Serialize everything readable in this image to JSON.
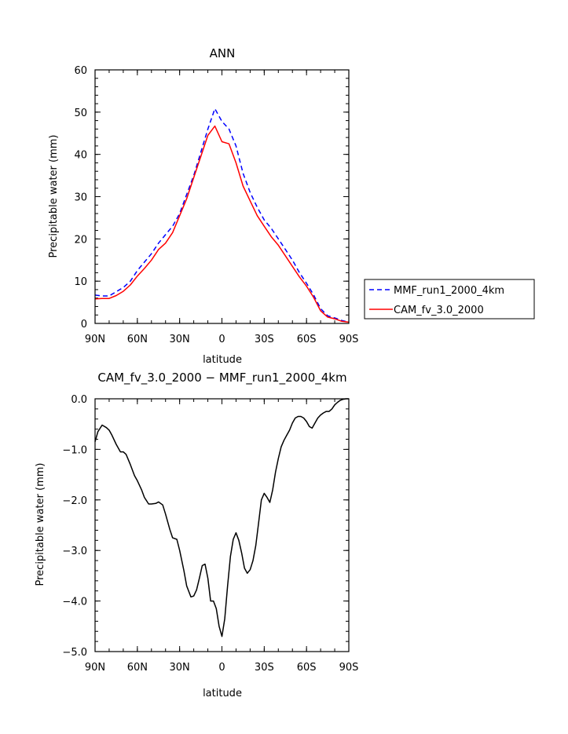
{
  "chart_data": [
    {
      "type": "line",
      "title": "ANN",
      "xlabel": "latitude",
      "ylabel": "Precipitable water (mm)",
      "xlim": [
        90,
        -90
      ],
      "ylim": [
        0,
        60
      ],
      "x_ticks": [
        {
          "value": 90,
          "label": "90N"
        },
        {
          "value": 60,
          "label": "60N"
        },
        {
          "value": 30,
          "label": "30N"
        },
        {
          "value": 0,
          "label": "0"
        },
        {
          "value": -30,
          "label": "30S"
        },
        {
          "value": -60,
          "label": "60S"
        },
        {
          "value": -90,
          "label": "90S"
        }
      ],
      "y_ticks": [
        {
          "value": 0,
          "label": "0"
        },
        {
          "value": 10,
          "label": "10"
        },
        {
          "value": 20,
          "label": "20"
        },
        {
          "value": 30,
          "label": "30"
        },
        {
          "value": 40,
          "label": "40"
        },
        {
          "value": 50,
          "label": "50"
        },
        {
          "value": 60,
          "label": "60"
        }
      ],
      "legend_position": "right",
      "series": [
        {
          "name": "MMF_run1_2000_4km",
          "color": "#0000ff",
          "dash": "dashed",
          "x": [
            90,
            85,
            80,
            75,
            70,
            65,
            60,
            55,
            50,
            45,
            40,
            35,
            30,
            25,
            20,
            15,
            10,
            5,
            0,
            -5,
            -10,
            -15,
            -20,
            -25,
            -30,
            -35,
            -40,
            -45,
            -50,
            -55,
            -60,
            -65,
            -70,
            -75,
            -80,
            -85,
            -90
          ],
          "y": [
            6.7,
            6.5,
            6.5,
            7.5,
            8.5,
            10.0,
            12.5,
            14.5,
            16.5,
            19.0,
            21.0,
            23.0,
            26.0,
            30.5,
            35.0,
            40.5,
            46.0,
            50.8,
            47.8,
            46.0,
            42.0,
            35.5,
            31.0,
            27.5,
            24.5,
            22.5,
            20.0,
            17.5,
            15.0,
            12.0,
            9.5,
            6.8,
            3.5,
            1.8,
            1.3,
            0.7,
            0.3
          ]
        },
        {
          "name": "CAM_fv_3.0_2000",
          "color": "#ff0000",
          "dash": "solid",
          "x": [
            90,
            85,
            80,
            75,
            70,
            65,
            60,
            55,
            50,
            45,
            40,
            35,
            30,
            25,
            20,
            15,
            10,
            5,
            0,
            -5,
            -10,
            -15,
            -20,
            -25,
            -30,
            -35,
            -40,
            -45,
            -50,
            -55,
            -60,
            -65,
            -70,
            -75,
            -80,
            -85,
            -90
          ],
          "y": [
            5.8,
            5.9,
            5.9,
            6.6,
            7.6,
            9.1,
            11.2,
            13.0,
            15.0,
            17.5,
            19.0,
            21.5,
            25.5,
            29.5,
            34.5,
            39.5,
            44.5,
            46.7,
            43.0,
            42.5,
            38.0,
            32.5,
            29.0,
            25.5,
            23.0,
            20.5,
            18.5,
            16.0,
            13.5,
            11.0,
            8.8,
            6.2,
            3.0,
            1.5,
            1.1,
            0.5,
            0.3
          ]
        }
      ]
    },
    {
      "type": "line",
      "title": "CAM_fv_3.0_2000 − MMF_run1_2000_4km",
      "xlabel": "latitude",
      "ylabel": "Precipitable water (mm)",
      "xlim": [
        90,
        -90
      ],
      "ylim": [
        -5.0,
        0.0
      ],
      "x_ticks": [
        {
          "value": 90,
          "label": "90N"
        },
        {
          "value": 60,
          "label": "60N"
        },
        {
          "value": 30,
          "label": "30N"
        },
        {
          "value": 0,
          "label": "0"
        },
        {
          "value": -30,
          "label": "30S"
        },
        {
          "value": -60,
          "label": "60S"
        },
        {
          "value": -90,
          "label": "90S"
        }
      ],
      "y_ticks": [
        {
          "value": 0.0,
          "label": "0.0"
        },
        {
          "value": -1.0,
          "label": "−1.0"
        },
        {
          "value": -2.0,
          "label": "−2.0"
        },
        {
          "value": -3.0,
          "label": "−3.0"
        },
        {
          "value": -4.0,
          "label": "−4.0"
        },
        {
          "value": -5.0,
          "label": "−5.0"
        }
      ],
      "series": [
        {
          "color": "#000000",
          "dash": "solid",
          "x": [
            90,
            88,
            85,
            82,
            80,
            78,
            75,
            72,
            70,
            68,
            65,
            62,
            60,
            57,
            55,
            52,
            50,
            47,
            45,
            42,
            40,
            37,
            35,
            32,
            30,
            27,
            25,
            22,
            20,
            18,
            16,
            14,
            12,
            10,
            8,
            6,
            4,
            2,
            0,
            -2,
            -4,
            -6,
            -8,
            -10,
            -12,
            -14,
            -16,
            -18,
            -20,
            -22,
            -24,
            -26,
            -28,
            -30,
            -32,
            -34,
            -36,
            -38,
            -40,
            -42,
            -44,
            -46,
            -48,
            -50,
            -52,
            -54,
            -56,
            -58,
            -60,
            -62,
            -64,
            -66,
            -68,
            -70,
            -72,
            -74,
            -76,
            -78,
            -80,
            -82,
            -84,
            -86,
            -88,
            -90
          ],
          "y": [
            -0.85,
            -0.65,
            -0.52,
            -0.57,
            -0.62,
            -0.72,
            -0.9,
            -1.05,
            -1.05,
            -1.1,
            -1.3,
            -1.52,
            -1.62,
            -1.8,
            -1.95,
            -2.08,
            -2.08,
            -2.07,
            -2.04,
            -2.1,
            -2.28,
            -2.58,
            -2.75,
            -2.78,
            -3.0,
            -3.4,
            -3.7,
            -3.92,
            -3.9,
            -3.78,
            -3.55,
            -3.3,
            -3.27,
            -3.55,
            -4.0,
            -4.0,
            -4.15,
            -4.5,
            -4.7,
            -4.35,
            -3.7,
            -3.12,
            -2.78,
            -2.65,
            -2.8,
            -3.05,
            -3.35,
            -3.45,
            -3.38,
            -3.2,
            -2.9,
            -2.45,
            -2.0,
            -1.87,
            -1.95,
            -2.05,
            -1.8,
            -1.45,
            -1.18,
            -0.95,
            -0.82,
            -0.72,
            -0.62,
            -0.48,
            -0.38,
            -0.35,
            -0.35,
            -0.38,
            -0.45,
            -0.55,
            -0.58,
            -0.48,
            -0.38,
            -0.32,
            -0.28,
            -0.25,
            -0.25,
            -0.2,
            -0.12,
            -0.07,
            -0.03,
            -0.01,
            0.0,
            0.0
          ]
        }
      ]
    }
  ]
}
